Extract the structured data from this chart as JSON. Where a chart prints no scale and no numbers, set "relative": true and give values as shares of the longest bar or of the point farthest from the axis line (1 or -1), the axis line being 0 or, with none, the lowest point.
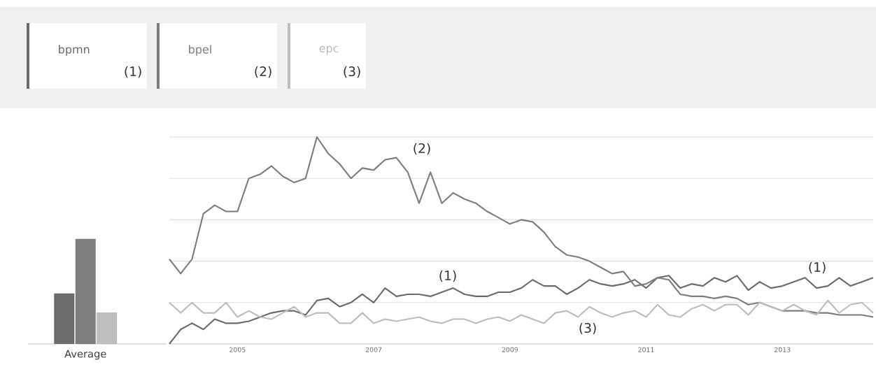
{
  "chart_data": [
    {
      "type": "bar",
      "categories": [
        null,
        null,
        null
      ],
      "values": [
        0.48,
        1,
        0.3
      ],
      "colors": [
        "#6b6b6b",
        "#7d7d7d",
        "#bdbdbd"
      ],
      "xlabel": "Average",
      "relative": true
    },
    {
      "type": "line",
      "relative": true,
      "grid": "y",
      "legend": "top left",
      "xlim": [
        "2004-01",
        "2014-05"
      ],
      "xticks": [
        "2005",
        "2007",
        "2009",
        "2011",
        "2013"
      ],
      "x": [
        "2004-01",
        "2004-03",
        "2004-05",
        "2004-07",
        "2004-09",
        "2004-11",
        "2005-01",
        "2005-03",
        "2005-05",
        "2005-07",
        "2005-09",
        "2005-11",
        "2006-01",
        "2006-03",
        "2006-05",
        "2006-07",
        "2006-09",
        "2006-11",
        "2007-01",
        "2007-03",
        "2007-05",
        "2007-07",
        "2007-09",
        "2007-11",
        "2008-01",
        "2008-03",
        "2008-05",
        "2008-07",
        "2008-09",
        "2008-11",
        "2009-01",
        "2009-03",
        "2009-05",
        "2009-07",
        "2009-09",
        "2009-11",
        "2010-01",
        "2010-03",
        "2010-05",
        "2010-07",
        "2010-09",
        "2010-11",
        "2011-01",
        "2011-03",
        "2011-05",
        "2011-07",
        "2011-09",
        "2011-11",
        "2012-01",
        "2012-03",
        "2012-05",
        "2012-07",
        "2012-09",
        "2012-11",
        "2013-01",
        "2013-03",
        "2013-05",
        "2013-07",
        "2013-09",
        "2013-11",
        "2014-01",
        "2014-03",
        "2014-05"
      ],
      "series": [
        {
          "name": "bpmn",
          "color": "#6b6b6b",
          "values": [
            0.0,
            0.07,
            0.1,
            0.07,
            0.12,
            0.1,
            0.1,
            0.11,
            0.13,
            0.15,
            0.16,
            0.16,
            0.14,
            0.21,
            0.22,
            0.18,
            0.2,
            0.24,
            0.2,
            0.27,
            0.23,
            0.24,
            0.24,
            0.23,
            0.25,
            0.27,
            0.24,
            0.23,
            0.23,
            0.25,
            0.25,
            0.27,
            0.31,
            0.28,
            0.28,
            0.24,
            0.27,
            0.31,
            0.29,
            0.28,
            0.29,
            0.31,
            0.27,
            0.32,
            0.33,
            0.27,
            0.29,
            0.28,
            0.32,
            0.3,
            0.33,
            0.26,
            0.3,
            0.27,
            0.28,
            0.3,
            0.32,
            0.27,
            0.28,
            0.32,
            0.28,
            0.3,
            0.32
          ]
        },
        {
          "name": "bpel",
          "color": "#7d7d7d",
          "values": [
            0.41,
            0.34,
            0.41,
            0.63,
            0.67,
            0.64,
            0.64,
            0.8,
            0.82,
            0.86,
            0.81,
            0.78,
            0.8,
            1,
            0.92,
            0.87,
            0.8,
            0.85,
            0.84,
            0.89,
            0.9,
            0.83,
            0.68,
            0.83,
            0.68,
            0.73,
            0.7,
            0.68,
            0.64,
            0.61,
            0.58,
            0.6,
            0.59,
            0.54,
            0.47,
            0.43,
            0.42,
            0.4,
            0.37,
            0.34,
            0.35,
            0.28,
            0.29,
            0.32,
            0.31,
            0.24,
            0.23,
            0.23,
            0.22,
            0.23,
            0.22,
            0.19,
            0.2,
            0.18,
            0.16,
            0.16,
            0.16,
            0.15,
            0.15,
            0.14,
            0.14,
            0.14,
            0.13
          ]
        },
        {
          "name": "epc",
          "color": "#bdbdbd",
          "values": [
            0.2,
            0.15,
            0.2,
            0.15,
            0.15,
            0.2,
            0.13,
            0.16,
            0.13,
            0.12,
            0.15,
            0.18,
            0.13,
            0.15,
            0.15,
            0.1,
            0.1,
            0.15,
            0.1,
            0.12,
            0.11,
            0.12,
            0.13,
            0.11,
            0.1,
            0.12,
            0.12,
            0.1,
            0.12,
            0.13,
            0.11,
            0.14,
            0.12,
            0.1,
            0.15,
            0.16,
            0.13,
            0.18,
            0.15,
            0.13,
            0.15,
            0.16,
            0.13,
            0.19,
            0.14,
            0.13,
            0.17,
            0.19,
            0.16,
            0.19,
            0.19,
            0.14,
            0.2,
            0.18,
            0.16,
            0.19,
            0.16,
            0.14,
            0.21,
            0.15,
            0.19,
            0.2,
            0.15
          ]
        }
      ],
      "annotations": [
        "(2)",
        "(1)",
        "(1)",
        "(3)",
        "(1)",
        "(2)",
        "(3)"
      ]
    }
  ]
}
